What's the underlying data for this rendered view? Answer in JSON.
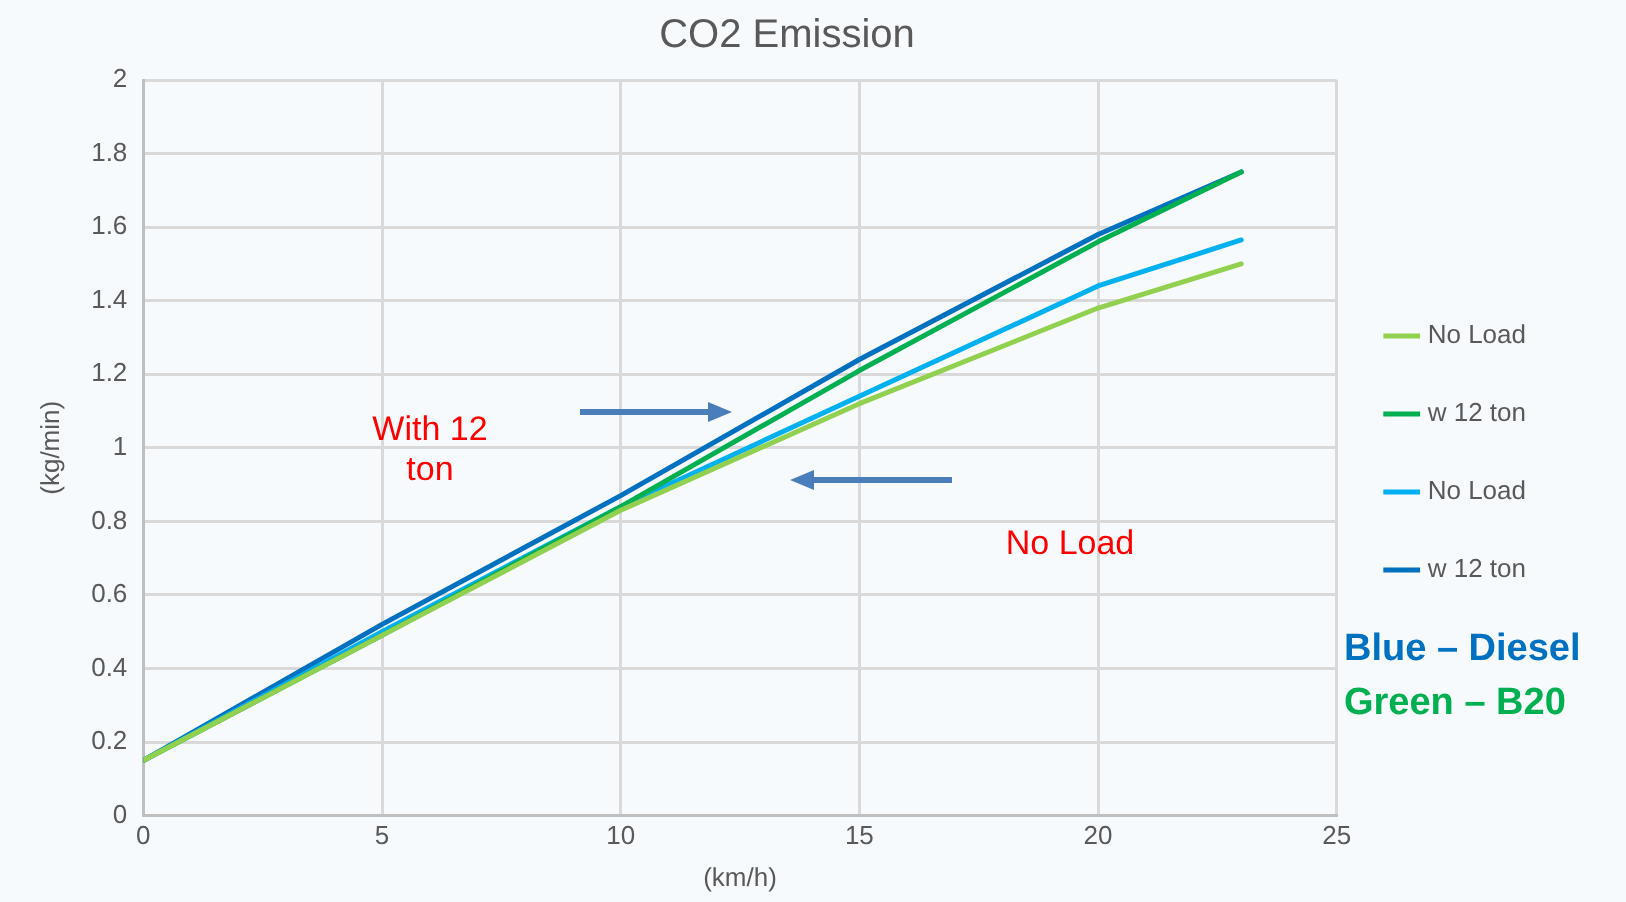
{
  "chart_data": {
    "type": "line",
    "title": "CO2 Emission",
    "xlabel": "(km/h)",
    "ylabel": "(kg/min)",
    "x": [
      0,
      5,
      10,
      15,
      20,
      23
    ],
    "series": [
      {
        "name": "No Load",
        "color": "#92d050",
        "values": [
          0.15,
          0.49,
          0.83,
          1.12,
          1.38,
          1.5
        ]
      },
      {
        "name": "w 12 ton",
        "color": "#00b050",
        "values": [
          0.15,
          0.49,
          0.84,
          1.21,
          1.56,
          1.75
        ]
      },
      {
        "name": "No Load",
        "color": "#00b0f0",
        "values": [
          0.15,
          0.5,
          0.84,
          1.14,
          1.44,
          1.565
        ]
      },
      {
        "name": "w 12 ton",
        "color": "#0070c0",
        "values": [
          0.15,
          0.52,
          0.87,
          1.24,
          1.58,
          1.75
        ]
      }
    ],
    "xlim": [
      0,
      25
    ],
    "xticks": [
      0,
      5,
      10,
      15,
      20,
      25
    ],
    "ylim": [
      0,
      2
    ],
    "yticks": [
      0,
      0.2,
      0.4,
      0.6,
      0.8,
      1,
      1.2,
      1.4,
      1.6,
      1.8,
      2
    ],
    "grid": true,
    "legend": "right",
    "marker": "none",
    "line_style": "solid",
    "annotations": [
      "With 12\nton",
      "No Load",
      "Blue – Diesel",
      "Green – B20"
    ]
  }
}
